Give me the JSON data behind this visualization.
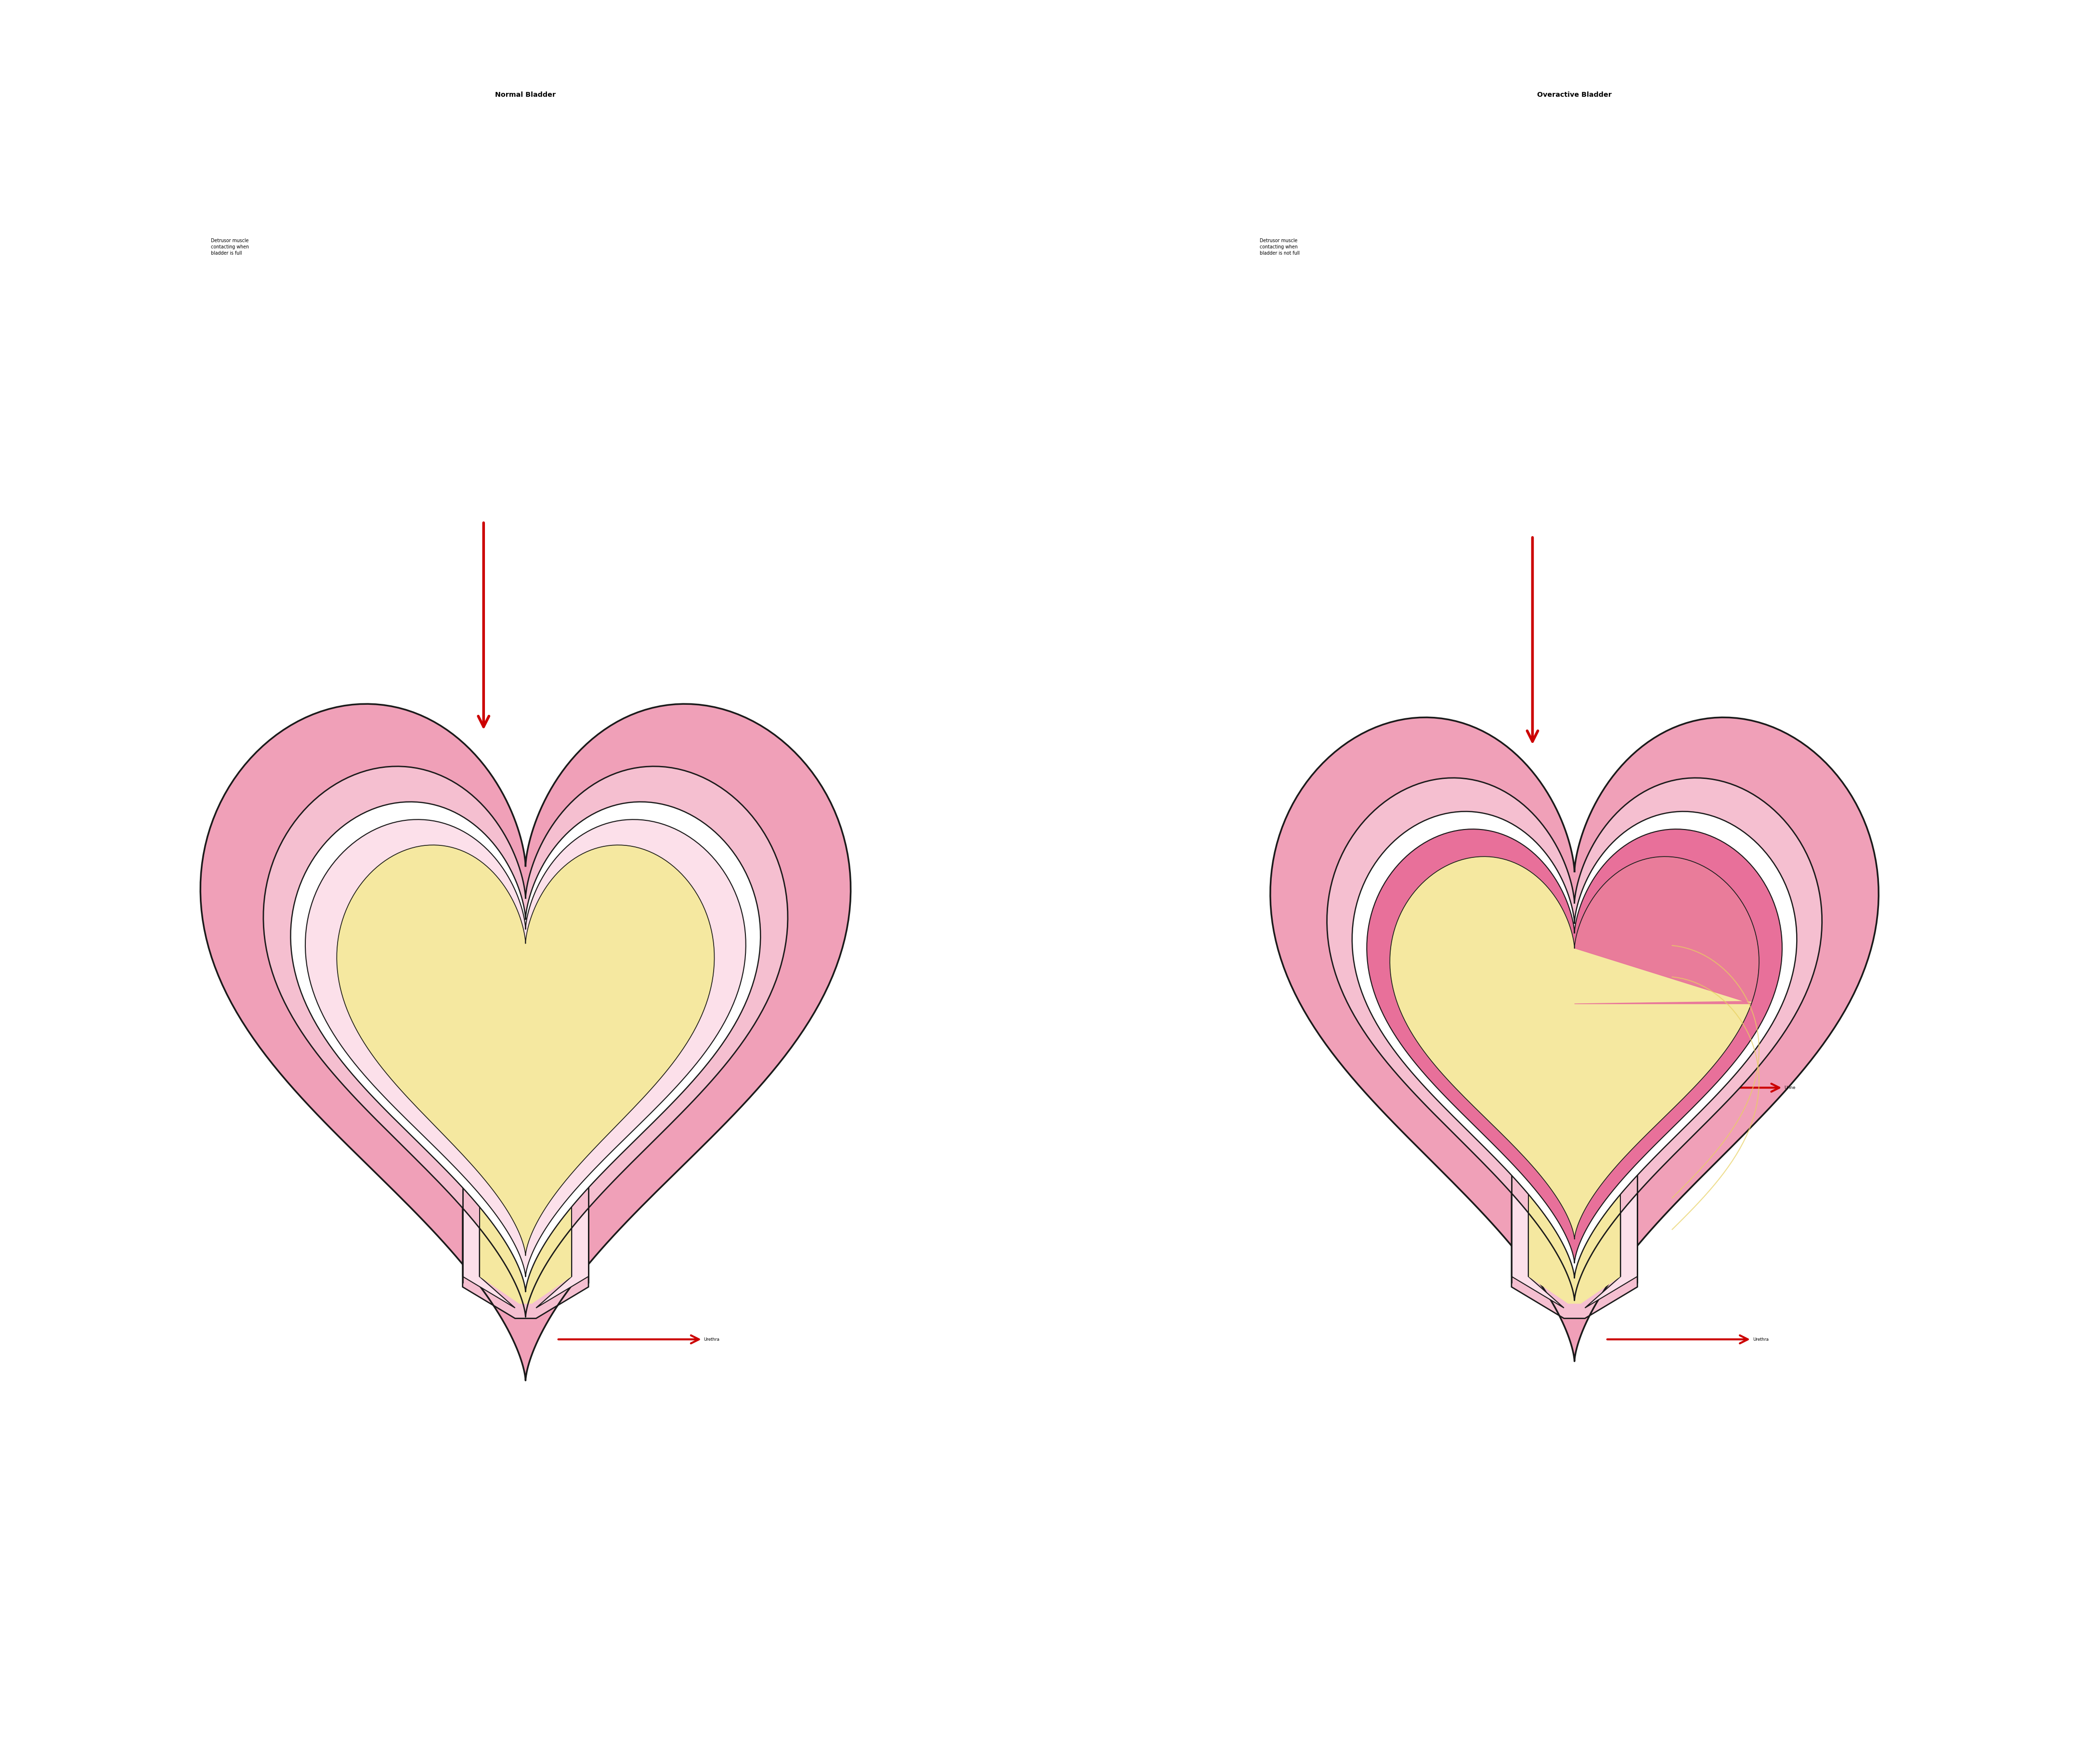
{
  "title_left": "Normal Bladder",
  "title_right": "Overactive Bladder",
  "label_left_text": "Detrusor muscle\ncontacting when\nbladder is full",
  "label_right_text": "Detrusor muscle\ncontacting when\nbladder is not full",
  "urine_label": "Urine",
  "urethra_label": "Urethra",
  "bg_color": "#ffffff",
  "outer_pink": "#f0a0b8",
  "mid_pink": "#f5bfd0",
  "inner_pink": "#fce0ea",
  "outline_color": "#1a1a1a",
  "urine_color": "#f5e8a0",
  "urine_dark": "#e8d060",
  "urethra_color": "#f0d080",
  "contracted_color": "#e8709a",
  "arrow_color": "#cc0000",
  "text_color": "#000000",
  "title_fontsize": 72,
  "label_fontsize": 48,
  "annot_fontsize": 44
}
